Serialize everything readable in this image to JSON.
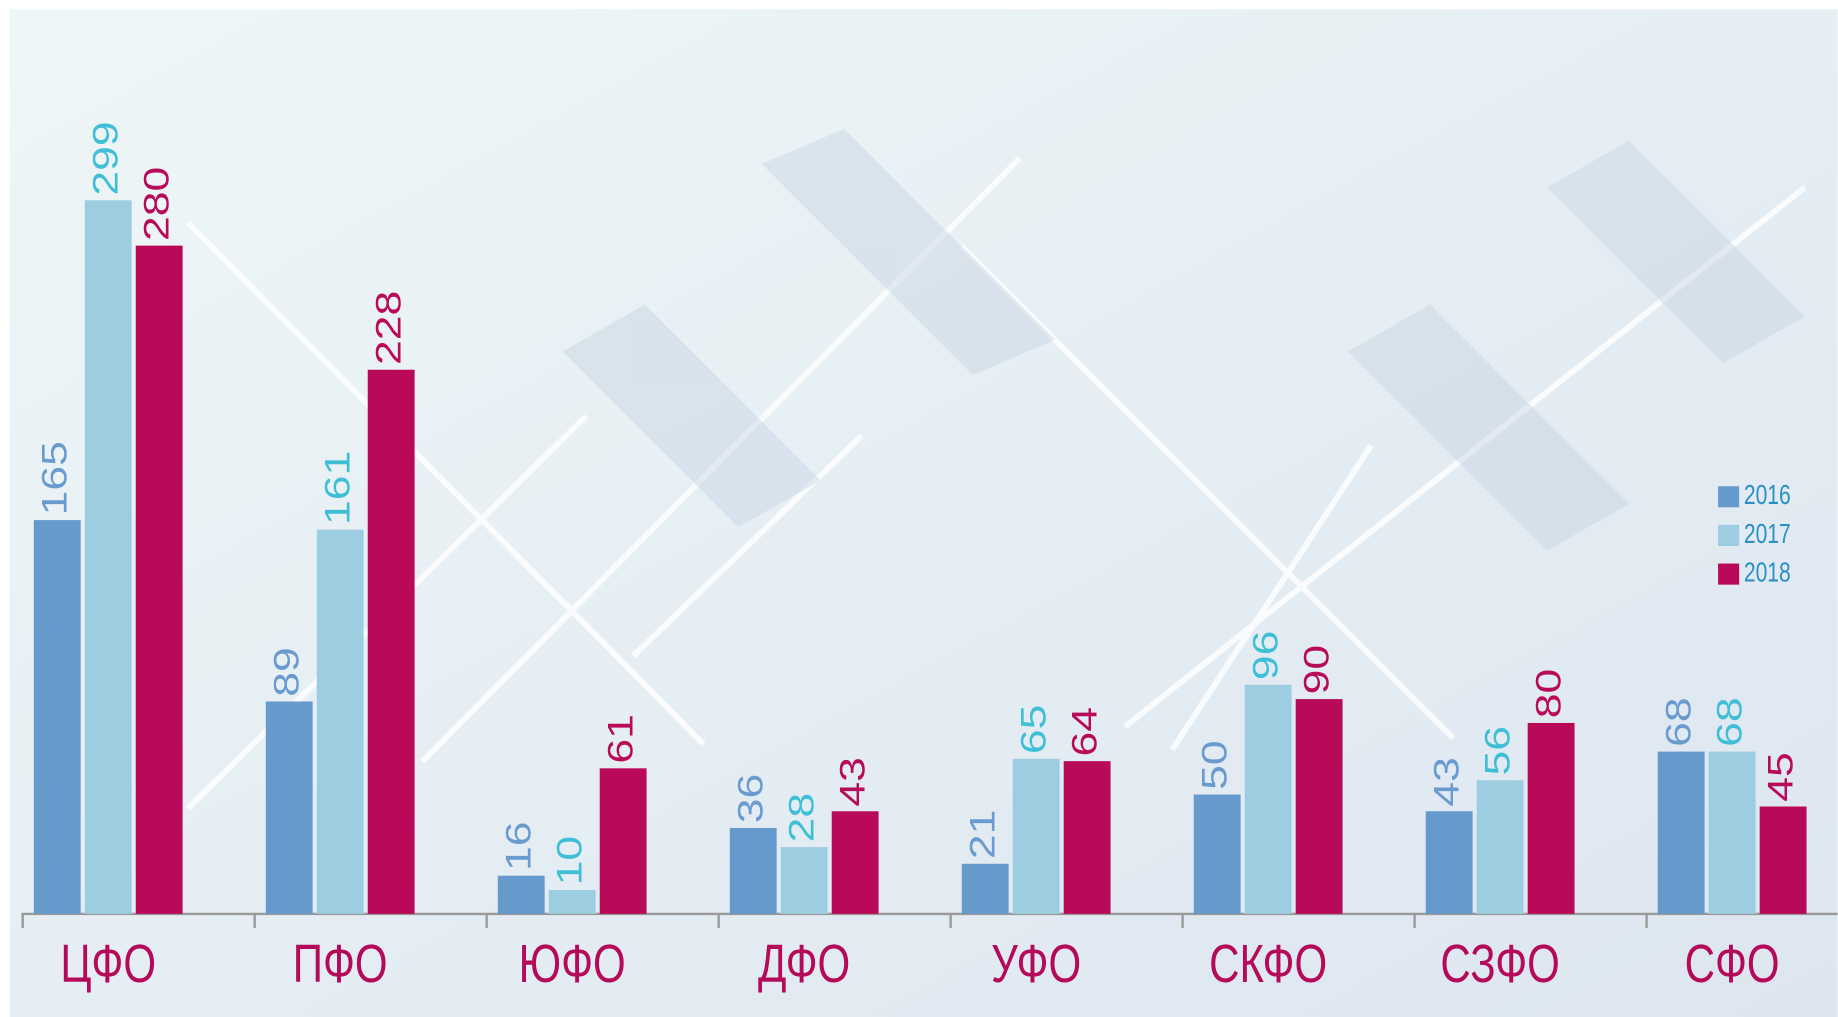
{
  "chart_data": {
    "type": "bar",
    "categories": [
      "ЦФО",
      "ПФО",
      "ЮФО",
      "ДФО",
      "УФО",
      "СКФО",
      "СЗФО",
      "СФО"
    ],
    "series": [
      {
        "name": "2016",
        "color": "#6699cc",
        "label_color": "#6a9bcf",
        "values": [
          165,
          89,
          16,
          36,
          21,
          50,
          43,
          68
        ]
      },
      {
        "name": "2017",
        "color": "#9dcde0",
        "label_color": "#3fbfd6",
        "values": [
          299,
          161,
          10,
          28,
          65,
          96,
          56,
          68
        ]
      },
      {
        "name": "2018",
        "color": "#b80a58",
        "label_color": "#b80a58",
        "values": [
          280,
          228,
          61,
          43,
          64,
          90,
          80,
          45
        ]
      }
    ],
    "legend": "right",
    "category_color": "#b5095a",
    "legend_text_color": "#2a8fc8"
  }
}
